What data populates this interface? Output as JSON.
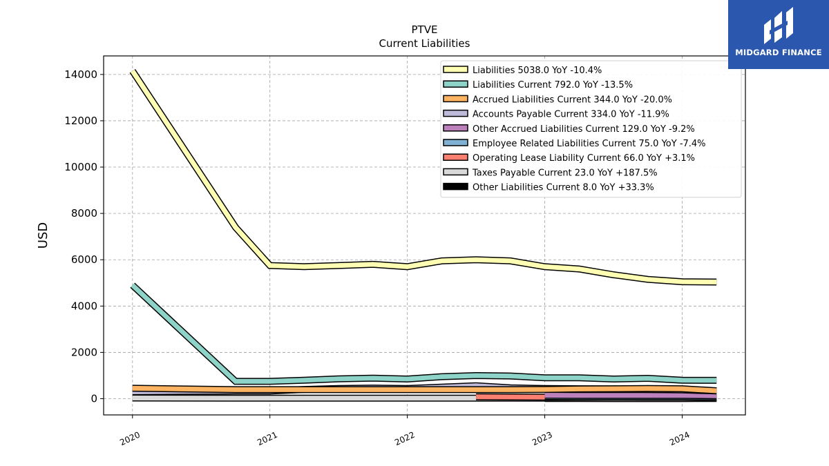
{
  "branding": {
    "logo_text": "MIDGARD FINANCE",
    "logo_bg": "#2b57ae"
  },
  "chart_data": {
    "type": "line",
    "title": "PTVE",
    "subtitle": "Current  Liabilities",
    "ylabel": "USD",
    "xlabel": "",
    "ylim": [
      -700,
      14800
    ],
    "yticks": [
      0,
      2000,
      4000,
      6000,
      8000,
      10000,
      12000,
      14000
    ],
    "xlim": [
      2019.79,
      2024.46
    ],
    "xticks": [
      "2020",
      "2021",
      "2022",
      "2023",
      "2024"
    ],
    "grid": true,
    "legend_position": "top-right",
    "x": [
      2020.0,
      2020.75,
      2021.0,
      2021.25,
      2021.5,
      2021.75,
      2022.0,
      2022.25,
      2022.5,
      2022.75,
      2023.0,
      2023.25,
      2023.5,
      2023.75,
      2024.0,
      2024.25
    ],
    "series": [
      {
        "name": "Other Liabilities Current",
        "legend": "Other Liabilities Current  8.0 YoY +33.3%",
        "color": "#000000",
        "values": [
          null,
          null,
          null,
          null,
          null,
          null,
          null,
          null,
          null,
          null,
          6,
          6,
          6,
          6,
          8,
          8
        ]
      },
      {
        "name": "Taxes Payable Current",
        "legend": "Taxes Payable Current  23.0 YoY +187.5%",
        "color": "#d9d9d9",
        "values": [
          30,
          25,
          25,
          25,
          25,
          25,
          25,
          25,
          25,
          25,
          20,
          15,
          10,
          8,
          8,
          23
        ]
      },
      {
        "name": "Operating Lease Liability Current",
        "legend": "Operating Lease Liability Current  66.0 YoY +3.1%",
        "color": "#fb8072",
        "values": [
          null,
          null,
          null,
          null,
          null,
          null,
          null,
          null,
          80,
          75,
          70,
          68,
          65,
          64,
          64,
          66
        ]
      },
      {
        "name": "Employee Related Liabilities Current",
        "legend": "Employee Related Liabilities Current  75.0 YoY -7.4%",
        "color": "#80b1d3",
        "values": [
          null,
          null,
          null,
          null,
          null,
          null,
          null,
          null,
          null,
          null,
          90,
          85,
          82,
          80,
          81,
          75
        ]
      },
      {
        "name": "Other Accrued Liabilities Current",
        "legend": "Other Accrued Liabilities Current  129.0 YoY -9.2%",
        "color": "#bc80bd",
        "values": [
          null,
          null,
          null,
          null,
          null,
          null,
          null,
          null,
          null,
          null,
          150,
          145,
          140,
          142,
          142,
          129
        ]
      },
      {
        "name": "Accounts Payable Current",
        "legend": "Accounts Payable Current  334.0 YoY -11.9%",
        "color": "#bebada",
        "values": [
          300,
          330,
          330,
          400,
          440,
          460,
          440,
          500,
          560,
          470,
          440,
          430,
          420,
          400,
          380,
          334
        ]
      },
      {
        "name": "Accrued Liabilities Current",
        "legend": "Accrued Liabilities Current  344.0 YoY -20.0%",
        "color": "#fdb462",
        "values": [
          450,
          390,
          390,
          390,
          390,
          390,
          390,
          390,
          390,
          390,
          400,
          420,
          430,
          440,
          430,
          344
        ]
      },
      {
        "name": "Liabilities Current",
        "legend": "Liabilities Current  792.0 YoY -13.5%",
        "color": "#8dd3c7",
        "values": [
          4900,
          750,
          750,
          800,
          860,
          890,
          850,
          950,
          1000,
          980,
          900,
          900,
          850,
          880,
          800,
          792
        ]
      },
      {
        "name": "Liabilities",
        "legend": "Liabilities  5038.0 YoY -10.4%",
        "color": "#ffffb3",
        "values": [
          14150,
          7400,
          5750,
          5700,
          5750,
          5800,
          5700,
          5950,
          6000,
          5950,
          5700,
          5600,
          5350,
          5150,
          5050,
          5038
        ]
      }
    ]
  }
}
